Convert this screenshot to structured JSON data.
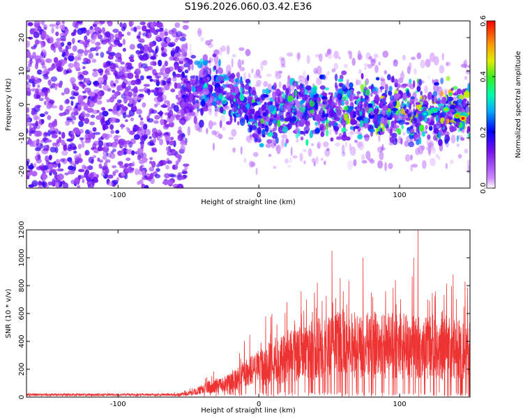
{
  "title": "S196.2026.060.03.42.E36",
  "chart_data": [
    {
      "type": "heatmap",
      "xlabel": "Height of straight line (km)",
      "ylabel": "Frequency (Hz)",
      "xlim": [
        -165,
        150
      ],
      "ylim": [
        -25,
        25
      ],
      "x_ticks": [
        -100,
        0,
        100
      ],
      "y_ticks": [
        -20,
        -10,
        0,
        10,
        20
      ],
      "colorbar": {
        "label": "Normalized spectral amplitude",
        "range": [
          0.0,
          0.6
        ],
        "ticks": [
          "0.0",
          "0.2",
          "0.4",
          "0.6"
        ]
      },
      "signal_band": {
        "onset_km": -55,
        "center_hz": [
          {
            "x": -55,
            "y": 3
          },
          {
            "x": -40,
            "y": 5
          },
          {
            "x": -20,
            "y": 3
          },
          {
            "x": 0,
            "y": -4
          },
          {
            "x": 20,
            "y": -2
          },
          {
            "x": 50,
            "y": -1
          },
          {
            "x": 100,
            "y": -2
          },
          {
            "x": 150,
            "y": -3
          }
        ],
        "peak_amplitude": 0.6,
        "peak_x_km": 145
      }
    },
    {
      "type": "line",
      "xlabel": "Height of straight line (km)",
      "ylabel": "SNR (10 * v/v)",
      "xlim": [
        -165,
        150
      ],
      "ylim": [
        0,
        1200
      ],
      "x_ticks": [
        -100,
        0,
        100
      ],
      "y_ticks": [
        0,
        200,
        400,
        600,
        800,
        1000,
        1200
      ],
      "color": "#ee3333",
      "series": [
        {
          "envelope": [
            {
              "x": -165,
              "y": 20
            },
            {
              "x": -60,
              "y": 20
            },
            {
              "x": -50,
              "y": 35
            },
            {
              "x": -40,
              "y": 80
            },
            {
              "x": -30,
              "y": 120
            },
            {
              "x": -20,
              "y": 150
            },
            {
              "x": -10,
              "y": 230
            },
            {
              "x": 0,
              "y": 300
            },
            {
              "x": 20,
              "y": 420
            },
            {
              "x": 60,
              "y": 550
            },
            {
              "x": 100,
              "y": 520
            },
            {
              "x": 150,
              "y": 480
            }
          ],
          "peaks": [
            {
              "x": 20,
              "y": 680
            },
            {
              "x": 30,
              "y": 760
            },
            {
              "x": 38,
              "y": 610
            },
            {
              "x": 45,
              "y": 690
            },
            {
              "x": 52,
              "y": 1050
            },
            {
              "x": 60,
              "y": 760
            },
            {
              "x": 66,
              "y": 600
            },
            {
              "x": 74,
              "y": 1000
            },
            {
              "x": 80,
              "y": 750
            },
            {
              "x": 90,
              "y": 760
            },
            {
              "x": 97,
              "y": 840
            },
            {
              "x": 103,
              "y": 600
            },
            {
              "x": 110,
              "y": 1000
            },
            {
              "x": 113,
              "y": 1200
            },
            {
              "x": 120,
              "y": 700
            },
            {
              "x": 130,
              "y": 610
            },
            {
              "x": 138,
              "y": 880
            },
            {
              "x": 147,
              "y": 300
            }
          ]
        }
      ]
    }
  ]
}
